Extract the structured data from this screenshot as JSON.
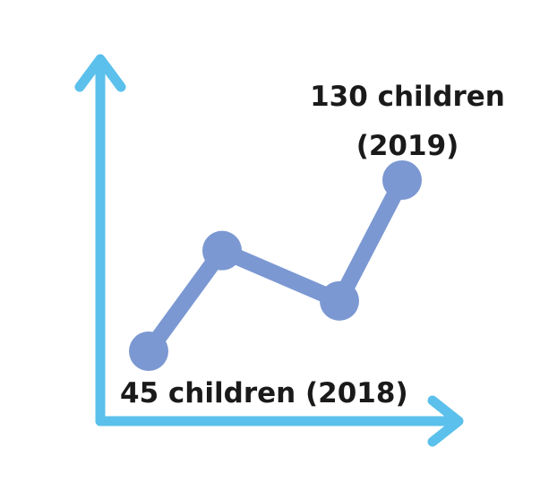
{
  "chart_data": {
    "type": "line",
    "x": [
      "",
      "",
      "",
      ""
    ],
    "series": [
      {
        "values": [
          45,
          95,
          70,
          130
        ]
      }
    ],
    "annotations": [
      {
        "point_index": 0,
        "text": "45 children (2018)"
      },
      {
        "point_index": 3,
        "lines": [
          "130 children",
          "(2019)"
        ]
      }
    ],
    "title": "",
    "xlabel": "",
    "ylabel": "",
    "grid": false,
    "legend": "none"
  },
  "colors": {
    "axis": "#5bc0eb",
    "line": "#7b98d2",
    "text": "#1a1a1a"
  }
}
